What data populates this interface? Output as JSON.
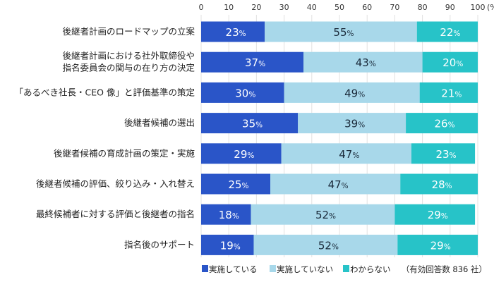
{
  "chart_data": {
    "type": "bar",
    "orientation": "horizontal",
    "stacked": true,
    "xlim": [
      0,
      100
    ],
    "x_ticks": [
      "0",
      "10",
      "20",
      "30",
      "40",
      "50",
      "60",
      "70",
      "80",
      "90",
      "100"
    ],
    "x_unit": "(%)",
    "categories": [
      [
        "後継者計画のロードマップの立案"
      ],
      [
        "後継者計画における社外取締役や",
        "指名委員会の関与の在り方の決定"
      ],
      [
        "「あるべき社長・CEO 像」と評価基準の策定"
      ],
      [
        "後継者候補の選出"
      ],
      [
        "後継者候補の育成計画の策定・実施"
      ],
      [
        "後継者候補の評価、絞り込み・入れ替え"
      ],
      [
        "最終候補者に対する評価と後継者の指名"
      ],
      [
        "指名後のサポート"
      ]
    ],
    "series": [
      {
        "name": "実施している",
        "color": "#2a55c8",
        "label_color": "#ffffff",
        "values": [
          23,
          37,
          30,
          35,
          29,
          25,
          18,
          19
        ]
      },
      {
        "name": "実施していない",
        "color": "#a8d8ea",
        "label_color": "#1a2a3a",
        "values": [
          55,
          43,
          49,
          39,
          47,
          47,
          52,
          52
        ]
      },
      {
        "name": "わからない",
        "color": "#27c3c8",
        "label_color": "#ffffff",
        "values": [
          22,
          20,
          21,
          26,
          23,
          28,
          29,
          29
        ]
      }
    ],
    "value_suffix": "%",
    "legend_position": "bottom",
    "note": "（有効回答数 836 社）",
    "grid": true
  }
}
